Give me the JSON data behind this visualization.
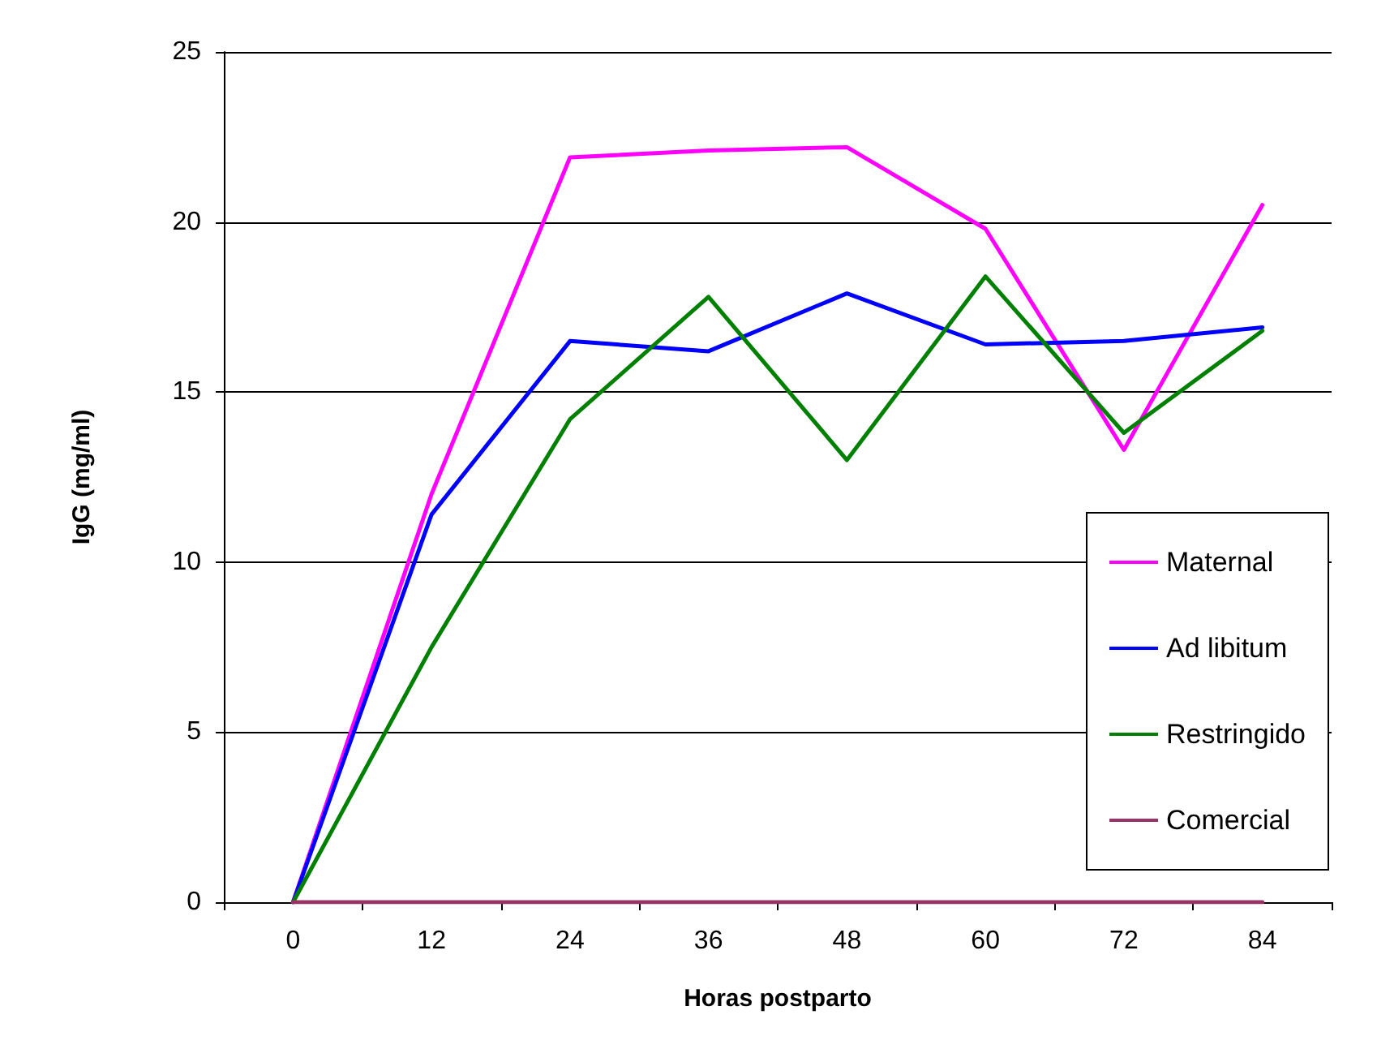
{
  "chart_data": {
    "type": "line",
    "xlabel": "Horas postparto",
    "ylabel": "IgG (mg/ml)",
    "categories": [
      "0",
      "12",
      "24",
      "36",
      "48",
      "60",
      "72",
      "84"
    ],
    "series": [
      {
        "name": "Maternal",
        "color": "#ff00ff",
        "values": [
          0,
          12.0,
          21.9,
          22.1,
          22.2,
          19.8,
          13.3,
          20.5
        ]
      },
      {
        "name": "Ad libitum",
        "color": "#0000ff",
        "values": [
          0,
          11.4,
          16.5,
          16.2,
          17.9,
          16.4,
          16.5,
          16.9
        ]
      },
      {
        "name": "Restringido",
        "color": "#008000",
        "values": [
          0,
          7.5,
          14.2,
          17.8,
          13.0,
          18.4,
          13.8,
          16.8
        ]
      },
      {
        "name": "Comercial",
        "color": "#993366",
        "values": [
          0,
          0,
          0,
          0,
          0,
          0,
          0,
          0
        ]
      }
    ],
    "ylim": [
      0,
      25
    ],
    "yticks": [
      0,
      5,
      10,
      15,
      20,
      25
    ],
    "grid": "y",
    "legend": "right",
    "marker": "none",
    "line_style": "solid"
  }
}
